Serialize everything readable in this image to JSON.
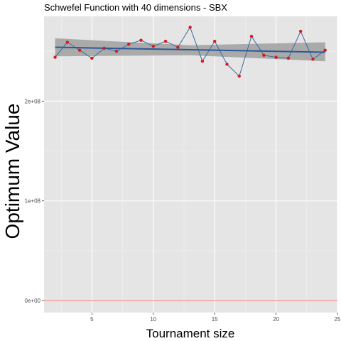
{
  "chart_data": {
    "type": "line",
    "title": "Schwefel Function with 40 dimensions -  SBX",
    "xlabel": "Tournament size",
    "ylabel": "Optimum Value",
    "xlim": [
      1.1,
      25.0
    ],
    "ylim": [
      -12000000,
      285000000
    ],
    "x_ticks": [
      5,
      10,
      15,
      20,
      25
    ],
    "y_ticks": [
      0,
      100000000,
      200000000
    ],
    "y_tick_labels": [
      "0e+00",
      "1e+08",
      "2e+08"
    ],
    "grid": true,
    "series": [
      {
        "x": [
          2,
          3,
          4,
          5,
          6,
          7,
          8,
          9,
          10,
          11,
          12,
          13,
          14,
          15,
          16,
          17,
          18,
          19,
          20,
          21,
          22,
          23,
          24
        ],
        "y": [
          244000000,
          259000000,
          251000000,
          243000000,
          253000000,
          250000000,
          257000000,
          261000000,
          255000000,
          260000000,
          254000000,
          274000000,
          240000000,
          260000000,
          237000000,
          225000000,
          265000000,
          246000000,
          244000000,
          243000000,
          270000000,
          242000000,
          251000000
        ]
      }
    ],
    "trend": {
      "method": "linear",
      "start": [
        2,
        254000000
      ],
      "end": [
        24,
        249000000
      ],
      "band_start": [
        245000000,
        263000000
      ],
      "band_mid": [
        246000000,
        256000000
      ],
      "band_end": [
        240000000,
        259000000
      ]
    },
    "reference_line_y": 0,
    "colors": {
      "panel": "#e5e5e5",
      "grid_major": "#ffffff",
      "grid_minor": "#f2f2f2",
      "line": "#3b6aa0",
      "points": "#d7191c",
      "trend": "#2a5a98",
      "band": "#a3a3a3",
      "reference": "#f8766d"
    }
  }
}
